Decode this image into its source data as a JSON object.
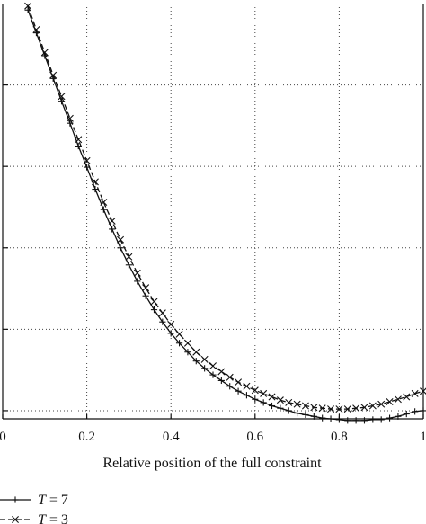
{
  "chart_data": {
    "type": "line",
    "xlabel": "Relative position of the full constraint",
    "ylabel": "",
    "title": "",
    "xlim": [
      0,
      1
    ],
    "ylim": [
      0.9,
      6.0
    ],
    "x_ticks": [
      0,
      0.2,
      0.4,
      0.6,
      0.8,
      1
    ],
    "x_tick_labels": [
      "0",
      "0.2",
      "0.4",
      "0.6",
      "0.8",
      "1"
    ],
    "y_gridlines": [
      1.0,
      2.0,
      3.0,
      4.0,
      5.0
    ],
    "grid": true,
    "legend_placement": "bottom-left",
    "series": [
      {
        "name": "T = 7",
        "legend_var": "T",
        "legend_value": "= 7",
        "marker": "plus",
        "dash": "solid",
        "x": [
          0.06,
          0.08,
          0.1,
          0.12,
          0.14,
          0.16,
          0.18,
          0.2,
          0.22,
          0.24,
          0.26,
          0.28,
          0.3,
          0.32,
          0.34,
          0.36,
          0.38,
          0.4,
          0.42,
          0.44,
          0.46,
          0.48,
          0.5,
          0.52,
          0.54,
          0.56,
          0.58,
          0.6,
          0.62,
          0.64,
          0.66,
          0.68,
          0.7,
          0.72,
          0.74,
          0.76,
          0.78,
          0.8,
          0.82,
          0.84,
          0.86,
          0.88,
          0.9,
          0.92,
          0.94,
          0.96,
          0.98,
          1.0
        ],
        "y": [
          5.92,
          5.64,
          5.36,
          5.08,
          4.8,
          4.53,
          4.25,
          3.99,
          3.72,
          3.47,
          3.23,
          3.0,
          2.79,
          2.59,
          2.41,
          2.24,
          2.09,
          1.95,
          1.83,
          1.72,
          1.61,
          1.52,
          1.44,
          1.37,
          1.3,
          1.24,
          1.19,
          1.14,
          1.1,
          1.06,
          1.03,
          1.0,
          0.97,
          0.95,
          0.93,
          0.91,
          0.9,
          0.89,
          0.88,
          0.88,
          0.88,
          0.89,
          0.89,
          0.91,
          0.93,
          0.96,
          0.99,
          1.0
        ]
      },
      {
        "name": "T = 3",
        "legend_var": "T",
        "legend_value": "= 3",
        "marker": "x",
        "dash": "dashed",
        "x": [
          0.06,
          0.08,
          0.1,
          0.12,
          0.14,
          0.16,
          0.18,
          0.2,
          0.22,
          0.24,
          0.26,
          0.28,
          0.3,
          0.32,
          0.34,
          0.36,
          0.38,
          0.4,
          0.42,
          0.44,
          0.46,
          0.48,
          0.5,
          0.52,
          0.54,
          0.56,
          0.58,
          0.6,
          0.62,
          0.64,
          0.66,
          0.68,
          0.7,
          0.72,
          0.74,
          0.76,
          0.78,
          0.8,
          0.82,
          0.84,
          0.86,
          0.88,
          0.9,
          0.92,
          0.94,
          0.96,
          0.98,
          1.0
        ],
        "y": [
          5.97,
          5.68,
          5.4,
          5.12,
          4.86,
          4.59,
          4.33,
          4.07,
          3.81,
          3.56,
          3.33,
          3.1,
          2.89,
          2.69,
          2.51,
          2.34,
          2.2,
          2.06,
          1.94,
          1.83,
          1.72,
          1.63,
          1.55,
          1.48,
          1.41,
          1.35,
          1.3,
          1.25,
          1.21,
          1.17,
          1.13,
          1.1,
          1.08,
          1.06,
          1.04,
          1.03,
          1.02,
          1.02,
          1.02,
          1.03,
          1.04,
          1.06,
          1.08,
          1.11,
          1.14,
          1.17,
          1.21,
          1.24
        ]
      }
    ]
  }
}
